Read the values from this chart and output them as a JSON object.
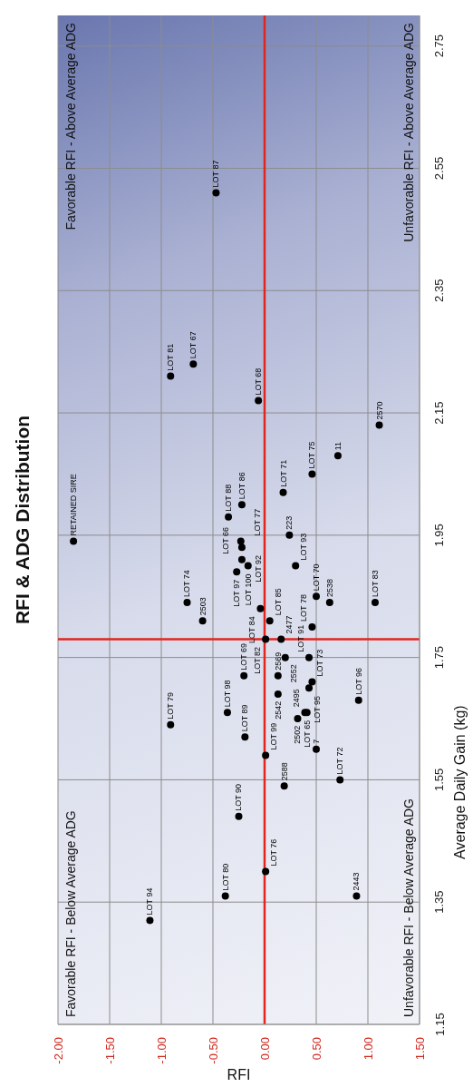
{
  "chart_data": {
    "type": "scatter",
    "title": "RFI & ADG Distribution",
    "xlabel": "RFI",
    "ylabel": "Average Daily Gain (kg)",
    "xlim": [
      -2.0,
      1.5
    ],
    "xticks": [
      {
        "value": -2,
        "label": "-2.00"
      },
      {
        "value": -1.5,
        "label": "-1.50"
      },
      {
        "value": -1,
        "label": "-1.00"
      },
      {
        "value": -0.5,
        "label": "-0.50"
      },
      {
        "value": 0,
        "label": "0.00"
      },
      {
        "value": 0.5,
        "label": "0.50"
      },
      {
        "value": 1,
        "label": "1.00"
      },
      {
        "value": 1.5,
        "label": "1.50"
      }
    ],
    "ylim": [
      1.15,
      2.8
    ],
    "yticks": [
      1.15,
      1.35,
      1.55,
      1.75,
      1.95,
      2.15,
      2.35,
      2.55,
      2.75
    ],
    "grid": true,
    "legend": false,
    "marker": "circle",
    "ref_lines": [
      {
        "axis": "x",
        "value": 0,
        "color": "#e0261e"
      },
      {
        "axis": "y",
        "value": 1.78,
        "color": "#e0261e"
      }
    ],
    "annotations": [
      "Favorable RFI - Below Average ADG",
      "Favorable RFI - Above Average ADG",
      "Unfavorable RFI - Below Average ADG",
      "Unfavorable RFI - Above Average ADG",
      {
        "text": "LOT 87",
        "x": -0.47,
        "y": 2.51
      },
      {
        "text": "LOT 81",
        "x": -0.91,
        "y": 2.21
      },
      {
        "text": "LOT 67",
        "x": -0.69,
        "y": 2.23
      },
      {
        "text": "LOT 68",
        "x": -0.06,
        "y": 2.17
      },
      {
        "text": "2570",
        "x": 1.11,
        "y": 2.13
      },
      {
        "text": "11",
        "x": 0.71,
        "y": 2.08
      },
      {
        "text": "LOT 75",
        "x": 0.46,
        "y": 2.05
      },
      {
        "text": "LOT 71",
        "x": 0.18,
        "y": 2.02
      },
      {
        "text": "LOT 88",
        "x": -0.35,
        "y": 1.98
      },
      {
        "text": "LOT 86",
        "x": -0.22,
        "y": 2.0
      },
      {
        "text": "LOT 77",
        "x": -0.23,
        "y": 1.94
      },
      {
        "text": "LOT 92",
        "x": -0.22,
        "y": 1.93
      },
      {
        "text": "LOT 66",
        "x": -0.22,
        "y": 1.91
      },
      {
        "text": "LOT 100",
        "x": -0.16,
        "y": 1.9
      },
      {
        "text": "LOT 97",
        "x": -0.27,
        "y": 1.89
      },
      {
        "text": "RETAINED SIRE",
        "x": -1.85,
        "y": 1.94
      },
      {
        "text": "223",
        "x": 0.24,
        "y": 1.95
      },
      {
        "text": "LOT 93",
        "x": 0.3,
        "y": 1.9
      },
      {
        "text": "LOT 84",
        "x": -0.04,
        "y": 1.83
      },
      {
        "text": "LOT 85",
        "x": 0.05,
        "y": 1.81
      },
      {
        "text": "LOT 74",
        "x": -0.75,
        "y": 1.84
      },
      {
        "text": "2503",
        "x": -0.6,
        "y": 1.81
      },
      {
        "text": "LOT 70",
        "x": 0.5,
        "y": 1.85
      },
      {
        "text": "2538",
        "x": 0.63,
        "y": 1.84
      },
      {
        "text": "LOT 83",
        "x": 1.07,
        "y": 1.84
      },
      {
        "text": "LOT 78",
        "x": 0.46,
        "y": 1.8
      },
      {
        "text": "LOT 82",
        "x": 0.01,
        "y": 1.78
      },
      {
        "text": "2477",
        "x": 0.16,
        "y": 1.78
      },
      {
        "text": "2552",
        "x": 0.2,
        "y": 1.75
      },
      {
        "text": "LOT 91",
        "x": 0.43,
        "y": 1.75
      },
      {
        "text": "LOT 69",
        "x": -0.2,
        "y": 1.72
      },
      {
        "text": "2569",
        "x": 0.13,
        "y": 1.72
      },
      {
        "text": "LOT 73",
        "x": 0.46,
        "y": 1.71
      },
      {
        "text": "LOT 95",
        "x": 0.43,
        "y": 1.7
      },
      {
        "text": "2542",
        "x": 0.13,
        "y": 1.69
      },
      {
        "text": "LOT 96",
        "x": 0.91,
        "y": 1.68
      },
      {
        "text": "LOT 98",
        "x": -0.36,
        "y": 1.66
      },
      {
        "text": "2495",
        "x": 0.39,
        "y": 1.66
      },
      {
        "text": "LOT 65",
        "x": 0.41,
        "y": 1.66
      },
      {
        "text": "2502",
        "x": 0.32,
        "y": 1.65
      },
      {
        "text": "LOT 79",
        "x": -0.91,
        "y": 1.64
      },
      {
        "text": "LOT 89",
        "x": -0.19,
        "y": 1.62
      },
      {
        "text": "LOT 99",
        "x": 0.01,
        "y": 1.59
      },
      {
        "text": "7",
        "x": 0.5,
        "y": 1.6
      },
      {
        "text": "2588",
        "x": 0.19,
        "y": 1.54
      },
      {
        "text": "LOT 72",
        "x": 0.73,
        "y": 1.55
      },
      {
        "text": "LOT 90",
        "x": -0.25,
        "y": 1.49
      },
      {
        "text": "LOT 76",
        "x": 0.01,
        "y": 1.4
      },
      {
        "text": "LOT 80",
        "x": -0.38,
        "y": 1.36
      },
      {
        "text": "2443",
        "x": 0.89,
        "y": 1.36
      },
      {
        "text": "LOT 94",
        "x": -1.11,
        "y": 1.32
      }
    ],
    "series": [
      {
        "color": "#000000",
        "x": [
          -0.47,
          -0.91,
          -0.69,
          -0.06,
          1.11,
          0.71,
          0.46,
          0.18,
          -0.35,
          -0.22,
          -0.23,
          -0.22,
          -0.22,
          -0.16,
          -0.27,
          -1.85,
          0.24,
          0.3,
          -0.04,
          0.05,
          -0.75,
          -0.6,
          0.5,
          0.63,
          1.07,
          0.46,
          0.01,
          0.16,
          0.2,
          0.43,
          -0.2,
          0.13,
          0.46,
          0.43,
          0.13,
          0.91,
          -0.36,
          0.39,
          0.41,
          0.32,
          -0.91,
          -0.19,
          0.01,
          0.5,
          0.19,
          0.73,
          -0.25,
          0.01,
          -0.38,
          0.89,
          -1.11
        ],
        "values": [
          2.51,
          2.21,
          2.23,
          2.17,
          2.13,
          2.08,
          2.05,
          2.02,
          1.98,
          2.0,
          1.94,
          1.93,
          1.91,
          1.9,
          1.89,
          1.94,
          1.95,
          1.9,
          1.83,
          1.81,
          1.84,
          1.81,
          1.85,
          1.84,
          1.84,
          1.8,
          1.78,
          1.78,
          1.75,
          1.75,
          1.72,
          1.72,
          1.71,
          1.7,
          1.69,
          1.68,
          1.66,
          1.66,
          1.66,
          1.65,
          1.64,
          1.62,
          1.59,
          1.6,
          1.54,
          1.55,
          1.49,
          1.4,
          1.36,
          1.36,
          1.32
        ]
      }
    ]
  }
}
